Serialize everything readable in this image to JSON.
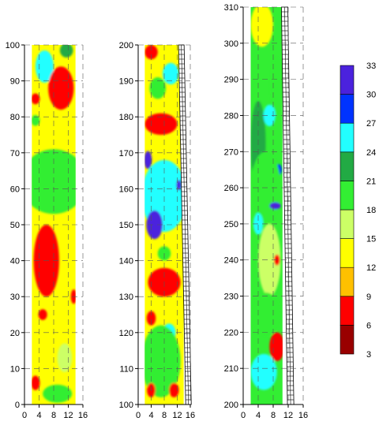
{
  "chart_data": [
    {
      "type": "heatmap",
      "title": "",
      "xlabel": "",
      "ylabel": "",
      "xlim": [
        0,
        16
      ],
      "ylim": [
        0,
        100
      ],
      "x_ticks": [
        "0",
        "4",
        "8",
        "12",
        "16"
      ],
      "y_ticks": [
        "0",
        "10",
        "20",
        "30",
        "40",
        "50",
        "60",
        "70",
        "80",
        "90",
        "100"
      ],
      "data_x_range": [
        2,
        14
      ],
      "grid": true,
      "blobs": [
        {
          "x": 5.5,
          "y": 94,
          "r": 0.9,
          "ry": 2.2,
          "v": 31
        },
        {
          "x": 5.5,
          "y": 94,
          "r": 2.5,
          "ry": 4.5,
          "v": 25
        },
        {
          "x": 10,
          "y": 88,
          "r": 3.5,
          "ry": 6,
          "v": 7
        },
        {
          "x": 11.5,
          "y": 98.5,
          "r": 1.8,
          "ry": 2,
          "v": 22
        },
        {
          "x": 3,
          "y": 85,
          "r": 1.2,
          "ry": 1.5,
          "v": 7
        },
        {
          "x": 3,
          "y": 79,
          "r": 1.2,
          "ry": 1.5,
          "v": 20
        },
        {
          "x": 9.5,
          "y": 65,
          "r": 1.4,
          "ry": 2.6,
          "v": 31
        },
        {
          "x": 8,
          "y": 64,
          "r": 7,
          "ry": 6,
          "v": 25
        },
        {
          "x": 8,
          "y": 62,
          "r": 9,
          "ry": 9,
          "v": 20
        },
        {
          "x": 6,
          "y": 40,
          "r": 3.5,
          "ry": 10,
          "v": 7
        },
        {
          "x": 5,
          "y": 25,
          "r": 1.2,
          "ry": 1.5,
          "v": 7
        },
        {
          "x": 13.5,
          "y": 30,
          "r": 0.8,
          "ry": 2,
          "v": 7
        },
        {
          "x": 11,
          "y": 13,
          "r": 2,
          "ry": 4,
          "v": 17
        },
        {
          "x": 3,
          "y": 6,
          "r": 1.2,
          "ry": 2,
          "v": 7
        },
        {
          "x": 9,
          "y": 3,
          "r": 4,
          "ry": 2.5,
          "v": 20
        }
      ],
      "fill_value": 12
    },
    {
      "type": "heatmap",
      "title": "",
      "xlabel": "",
      "ylabel": "",
      "xlim": [
        0,
        16
      ],
      "ylim": [
        100,
        200
      ],
      "x_ticks": [
        "0",
        "4",
        "8",
        "12",
        "16"
      ],
      "y_ticks": [
        "100",
        "110",
        "120",
        "130",
        "140",
        "150",
        "160",
        "170",
        "180",
        "190",
        "200"
      ],
      "data_x_range": [
        2,
        14
      ],
      "grid": true,
      "blobs": [
        {
          "x": 4,
          "y": 198,
          "r": 2,
          "ry": 2,
          "v": 7
        },
        {
          "x": 10,
          "y": 192,
          "r": 2.5,
          "ry": 3,
          "v": 25
        },
        {
          "x": 6,
          "y": 188,
          "r": 2.5,
          "ry": 3,
          "v": 20
        },
        {
          "x": 7,
          "y": 178,
          "r": 5,
          "ry": 3,
          "v": 7
        },
        {
          "x": 8,
          "y": 158,
          "r": 7,
          "ry": 10,
          "v": 25
        },
        {
          "x": 5,
          "y": 150,
          "r": 2.5,
          "ry": 4,
          "v": 31
        },
        {
          "x": 3,
          "y": 168,
          "r": 1.2,
          "ry": 2.5,
          "v": 31
        },
        {
          "x": 12.5,
          "y": 161,
          "r": 0.8,
          "ry": 1.5,
          "v": 31
        },
        {
          "x": 8,
          "y": 142,
          "r": 2,
          "ry": 2,
          "v": 20
        },
        {
          "x": 8,
          "y": 134,
          "r": 5,
          "ry": 4,
          "v": 7
        },
        {
          "x": 4,
          "y": 124,
          "r": 1.4,
          "ry": 2,
          "v": 7
        },
        {
          "x": 9.5,
          "y": 120,
          "r": 0.7,
          "ry": 1,
          "v": 31
        },
        {
          "x": 9.5,
          "y": 120,
          "r": 2,
          "ry": 2.5,
          "v": 24
        },
        {
          "x": 7,
          "y": 112,
          "r": 6,
          "ry": 10,
          "v": 20
        },
        {
          "x": 4,
          "y": 104,
          "r": 1.3,
          "ry": 2,
          "v": 7
        },
        {
          "x": 11,
          "y": 104,
          "r": 1.5,
          "ry": 2,
          "v": 7
        }
      ],
      "fill_value": 14
    },
    {
      "type": "heatmap",
      "title": "",
      "xlabel": "",
      "ylabel": "",
      "xlim": [
        0,
        16
      ],
      "ylim": [
        200,
        310
      ],
      "x_ticks": [
        "0",
        "4",
        "8",
        "12",
        "16"
      ],
      "y_ticks": [
        "200",
        "210",
        "220",
        "230",
        "240",
        "250",
        "260",
        "270",
        "280",
        "290",
        "300",
        "310"
      ],
      "data_x_range": [
        2,
        10.5
      ],
      "grid": true,
      "blobs": [
        {
          "x": 5,
          "y": 305,
          "r": 3,
          "ry": 6,
          "v": 12
        },
        {
          "x": 9,
          "y": 288,
          "r": 1.6,
          "ry": 8,
          "v": 20
        },
        {
          "x": 4,
          "y": 272,
          "r": 2,
          "ry": 12,
          "v": 22
        },
        {
          "x": 7,
          "y": 280,
          "r": 0.7,
          "ry": 1.5,
          "v": 31
        },
        {
          "x": 7,
          "y": 280,
          "r": 1.6,
          "ry": 3,
          "v": 25
        },
        {
          "x": 9.5,
          "y": 265,
          "r": 0.8,
          "ry": 1.5,
          "v": 29
        },
        {
          "x": 6,
          "y": 260,
          "r": 4,
          "ry": 10,
          "v": 20
        },
        {
          "x": 4,
          "y": 250,
          "r": 1.3,
          "ry": 3,
          "v": 26
        },
        {
          "x": 8.5,
          "y": 255,
          "r": 1.5,
          "ry": 1,
          "v": 31
        },
        {
          "x": 7,
          "y": 240,
          "r": 3,
          "ry": 10,
          "v": 17
        },
        {
          "x": 9,
          "y": 240,
          "r": 0.8,
          "ry": 1.5,
          "v": 7
        },
        {
          "x": 6,
          "y": 225,
          "r": 4,
          "ry": 6,
          "v": 20
        },
        {
          "x": 9,
          "y": 216,
          "r": 2,
          "ry": 4,
          "v": 7
        },
        {
          "x": 5.5,
          "y": 209,
          "r": 1.5,
          "ry": 2.5,
          "v": 31
        },
        {
          "x": 5.5,
          "y": 209,
          "r": 3.5,
          "ry": 5,
          "v": 24
        }
      ],
      "fill_value": 19
    }
  ],
  "colorbar": {
    "levels": [
      "3",
      "6",
      "9",
      "12",
      "15",
      "18",
      "21",
      "24",
      "27",
      "30",
      "33"
    ],
    "colors": [
      "#990000",
      "#ff0000",
      "#ffc000",
      "#ffff00",
      "#ccff66",
      "#33ee33",
      "#22aa44",
      "#22ffff",
      "#0033ff",
      "#4b22dd"
    ]
  }
}
